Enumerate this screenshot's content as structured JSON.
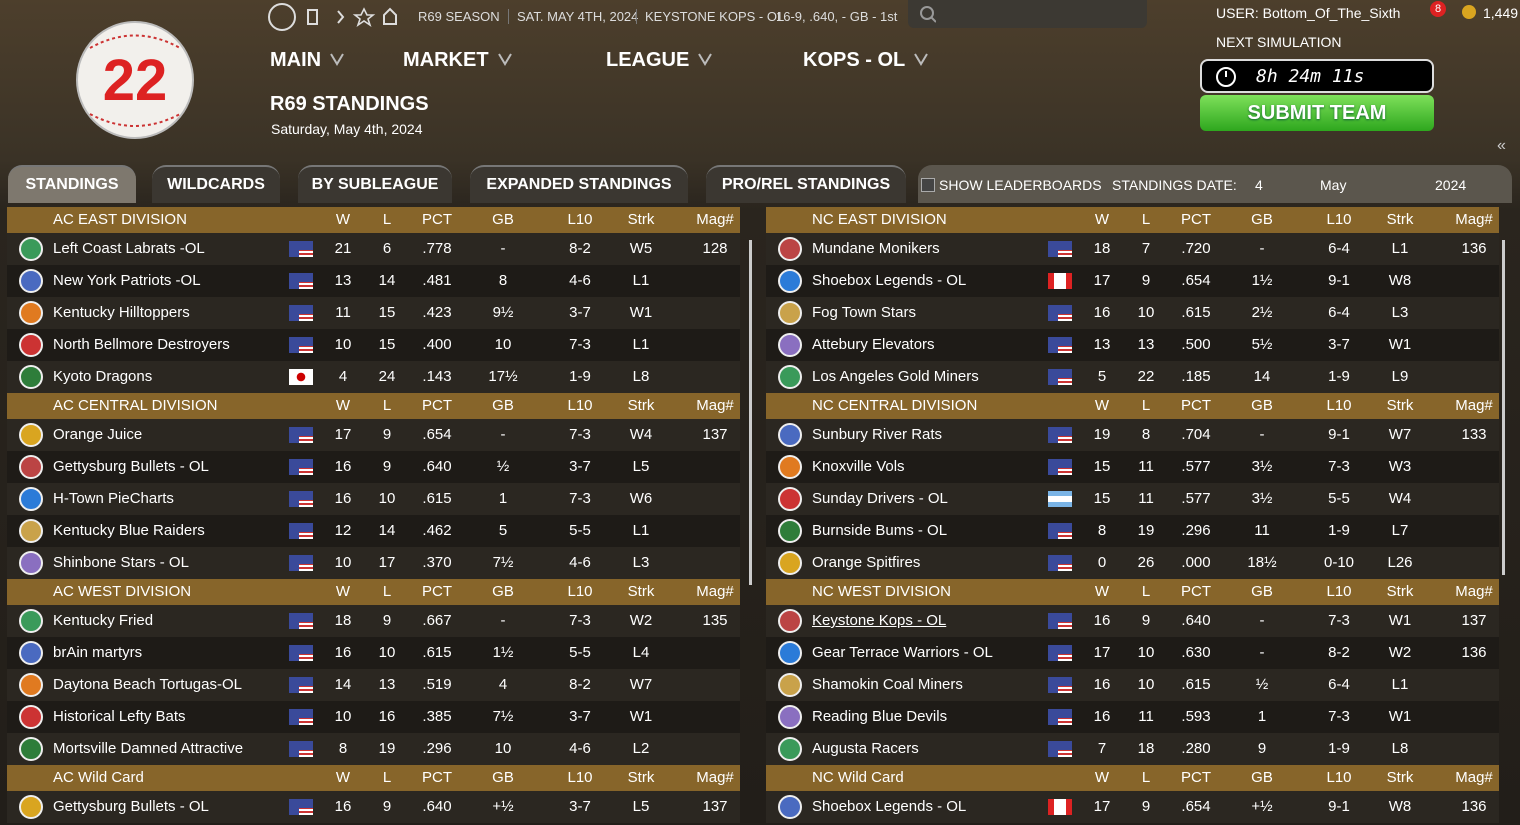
{
  "header": {
    "season": "R69 SEASON",
    "date": "SAT. MAY 4TH, 2024",
    "team": "KEYSTONE KOPS - OL",
    "record": "16-9, .640, - GB - 1st",
    "user": "USER: Bottom_Of_The_Sixth",
    "notifications": "8",
    "coins": "1,449",
    "logo_number": "22"
  },
  "nav": [
    "MAIN",
    "MARKET",
    "LEAGUE",
    "KOPS - OL"
  ],
  "page": {
    "title": "R69 STANDINGS",
    "subtitle": "Saturday, May 4th, 2024"
  },
  "simulation": {
    "label": "NEXT SIMULATION",
    "timer": "8h 24m 11s",
    "button": "SUBMIT TEAM"
  },
  "tabs": [
    "STANDINGS",
    "WILDCARDS",
    "BY SUBLEAGUE",
    "EXPANDED STANDINGS",
    "PRO/REL STANDINGS"
  ],
  "options": {
    "leaderboards": "SHOW LEADERBOARDS",
    "date_label": "STANDINGS DATE:",
    "day": "4",
    "month": "May",
    "year": "2024"
  },
  "panels": [
    {
      "divisions": [
        {
          "title": "AC EAST DIVISION",
          "columns": [
            "W",
            "L",
            "PCT",
            "GB",
            "L10",
            "Strk",
            "Mag#"
          ],
          "rows": [
            {
              "team": "Left Coast Labrats -OL",
              "flag": "us",
              "cells": [
                21,
                6,
                ".778",
                "-",
                "8-2",
                "W5",
                128
              ]
            },
            {
              "team": "New York Patriots -OL",
              "flag": "us",
              "cells": [
                13,
                14,
                ".481",
                "8",
                "4-6",
                "L1",
                null
              ]
            },
            {
              "team": "Kentucky Hilltoppers",
              "flag": "us",
              "cells": [
                11,
                15,
                ".423",
                "9½",
                "3-7",
                "W1",
                null
              ]
            },
            {
              "team": "North Bellmore Destroyers",
              "flag": "us",
              "cells": [
                10,
                15,
                ".400",
                "10",
                "7-3",
                "L1",
                null
              ]
            },
            {
              "team": "Kyoto Dragons",
              "flag": "jp",
              "cells": [
                4,
                24,
                ".143",
                "17½",
                "1-9",
                "L8",
                null
              ]
            }
          ]
        },
        {
          "title": "AC CENTRAL DIVISION",
          "columns": [
            "W",
            "L",
            "PCT",
            "GB",
            "L10",
            "Strk",
            "Mag#"
          ],
          "rows": [
            {
              "team": "Orange Juice",
              "flag": "us",
              "cells": [
                17,
                9,
                ".654",
                "-",
                "7-3",
                "W4",
                137
              ]
            },
            {
              "team": "Gettysburg Bullets - OL",
              "flag": "us",
              "cells": [
                16,
                9,
                ".640",
                "½",
                "3-7",
                "L5",
                null
              ]
            },
            {
              "team": "H-Town PieCharts",
              "flag": "us",
              "cells": [
                16,
                10,
                ".615",
                "1",
                "7-3",
                "W6",
                null
              ]
            },
            {
              "team": "Kentucky Blue Raiders",
              "flag": "us",
              "cells": [
                12,
                14,
                ".462",
                "5",
                "5-5",
                "L1",
                null
              ]
            },
            {
              "team": "Shinbone Stars - OL",
              "flag": "us",
              "cells": [
                10,
                17,
                ".370",
                "7½",
                "4-6",
                "L3",
                null
              ]
            }
          ]
        },
        {
          "title": "AC WEST DIVISION",
          "columns": [
            "W",
            "L",
            "PCT",
            "GB",
            "L10",
            "Strk",
            "Mag#"
          ],
          "rows": [
            {
              "team": "Kentucky Fried",
              "flag": "us",
              "cells": [
                18,
                9,
                ".667",
                "-",
                "7-3",
                "W2",
                135
              ]
            },
            {
              "team": "brAin martyrs",
              "flag": "us",
              "cells": [
                16,
                10,
                ".615",
                "1½",
                "5-5",
                "L4",
                null
              ]
            },
            {
              "team": "Daytona Beach Tortugas-OL",
              "flag": "us",
              "cells": [
                14,
                13,
                ".519",
                "4",
                "8-2",
                "W7",
                null
              ]
            },
            {
              "team": "Historical Lefty Bats",
              "flag": "us",
              "cells": [
                10,
                16,
                ".385",
                "7½",
                "3-7",
                "W1",
                null
              ]
            },
            {
              "team": "Mortsville Damned Attractive",
              "flag": "us",
              "cells": [
                8,
                19,
                ".296",
                "10",
                "4-6",
                "L2",
                null
              ]
            }
          ]
        },
        {
          "title": "AC  Wild Card",
          "columns": [
            "W",
            "L",
            "PCT",
            "GB",
            "L10",
            "Strk",
            "Mag#"
          ],
          "rows": [
            {
              "team": "Gettysburg Bullets - OL",
              "flag": "us",
              "cells": [
                16,
                9,
                ".640",
                "+½",
                "3-7",
                "L5",
                137
              ]
            }
          ]
        }
      ]
    },
    {
      "divisions": [
        {
          "title": "NC EAST DIVISION",
          "columns": [
            "W",
            "L",
            "PCT",
            "GB",
            "L10",
            "Strk",
            "Mag#"
          ],
          "rows": [
            {
              "team": "Mundane Monikers",
              "flag": "us",
              "cells": [
                18,
                7,
                ".720",
                "-",
                "6-4",
                "L1",
                136
              ]
            },
            {
              "team": "Shoebox Legends - OL",
              "flag": "ca",
              "cells": [
                17,
                9,
                ".654",
                "1½",
                "9-1",
                "W8",
                null
              ]
            },
            {
              "team": "Fog Town Stars",
              "flag": "us",
              "cells": [
                16,
                10,
                ".615",
                "2½",
                "6-4",
                "L3",
                null
              ]
            },
            {
              "team": "Attebury Elevators",
              "flag": "us",
              "cells": [
                13,
                13,
                ".500",
                "5½",
                "3-7",
                "W1",
                null
              ]
            },
            {
              "team": "Los Angeles Gold Miners",
              "flag": "us",
              "cells": [
                5,
                22,
                ".185",
                "14",
                "1-9",
                "L9",
                null
              ]
            }
          ]
        },
        {
          "title": "NC CENTRAL DIVISION",
          "columns": [
            "W",
            "L",
            "PCT",
            "GB",
            "L10",
            "Strk",
            "Mag#"
          ],
          "rows": [
            {
              "team": "Sunbury River Rats",
              "flag": "us",
              "cells": [
                19,
                8,
                ".704",
                "-",
                "9-1",
                "W7",
                133
              ]
            },
            {
              "team": "Knoxville Vols",
              "flag": "us",
              "cells": [
                15,
                11,
                ".577",
                "3½",
                "7-3",
                "W3",
                null
              ]
            },
            {
              "team": "Sunday Drivers - OL",
              "flag": "ar",
              "cells": [
                15,
                11,
                ".577",
                "3½",
                "5-5",
                "W4",
                null
              ]
            },
            {
              "team": "Burnside Bums - OL",
              "flag": "us",
              "cells": [
                8,
                19,
                ".296",
                "11",
                "1-9",
                "L7",
                null
              ]
            },
            {
              "team": "Orange Spitfires",
              "flag": "us",
              "cells": [
                0,
                26,
                ".000",
                "18½",
                "0-10",
                "L26",
                null
              ]
            }
          ]
        },
        {
          "title": "NC WEST DIVISION",
          "columns": [
            "W",
            "L",
            "PCT",
            "GB",
            "L10",
            "Strk",
            "Mag#"
          ],
          "rows": [
            {
              "team": "Keystone Kops - OL",
              "flag": "us",
              "underline": true,
              "cells": [
                16,
                9,
                ".640",
                "-",
                "7-3",
                "W1",
                137
              ]
            },
            {
              "team": "Gear Terrace Warriors - OL",
              "flag": "us",
              "cells": [
                17,
                10,
                ".630",
                "-",
                "8-2",
                "W2",
                136
              ]
            },
            {
              "team": "Shamokin Coal Miners",
              "flag": "us",
              "cells": [
                16,
                10,
                ".615",
                "½",
                "6-4",
                "L1",
                null
              ]
            },
            {
              "team": "Reading Blue Devils",
              "flag": "us",
              "cells": [
                16,
                11,
                ".593",
                "1",
                "7-3",
                "W1",
                null
              ]
            },
            {
              "team": "Augusta Racers",
              "flag": "us",
              "cells": [
                7,
                18,
                ".280",
                "9",
                "1-9",
                "L8",
                null
              ]
            }
          ]
        },
        {
          "title": "NC  Wild Card",
          "columns": [
            "W",
            "L",
            "PCT",
            "GB",
            "L10",
            "Strk",
            "Mag#"
          ],
          "rows": [
            {
              "team": "Shoebox Legends - OL",
              "flag": "ca",
              "cells": [
                17,
                9,
                ".654",
                "+½",
                "9-1",
                "W8",
                136
              ]
            }
          ]
        }
      ]
    }
  ]
}
